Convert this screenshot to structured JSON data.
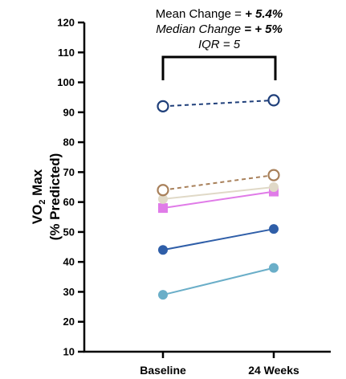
{
  "chart_data": {
    "type": "line",
    "categories": [
      "Baseline",
      "24 Weeks"
    ],
    "ylabel_line1": "VO",
    "ylabel_sub": "2",
    "ylabel_line1_rest": " Max",
    "ylabel_line2": "(%  Predicted)",
    "xlabel": "",
    "ylim": [
      10,
      120
    ],
    "yticks": [
      "10",
      "20",
      "30",
      "40",
      "50",
      "60",
      "70",
      "80",
      "90",
      "100",
      "110",
      "120"
    ],
    "grid": false,
    "legend": "none",
    "annotation": {
      "line1_prefix": "Mean Change = ",
      "line1_value": "+ 5.4%",
      "line2_prefix": "Median Change",
      "line2_value": " = + 5%",
      "line3": "IQR = 5"
    },
    "series": [
      {
        "values": [
          29,
          38
        ],
        "color": "#6aaec8",
        "marker": "circle-filled",
        "dash": false
      },
      {
        "values": [
          44,
          51
        ],
        "color": "#2f5ea8",
        "marker": "circle-filled",
        "dash": false
      },
      {
        "values": [
          58,
          63.5
        ],
        "color": "#e07be8",
        "marker": "square-filled",
        "dash": false
      },
      {
        "values": [
          61,
          65
        ],
        "color": "#e0d9c7",
        "marker": "circle-filled",
        "dash": false
      },
      {
        "values": [
          64,
          69
        ],
        "color": "#a8805a",
        "marker": "circle-open",
        "dash": true
      },
      {
        "values": [
          92,
          94
        ],
        "color": "#1f3f7a",
        "marker": "circle-open",
        "dash": true
      }
    ]
  }
}
